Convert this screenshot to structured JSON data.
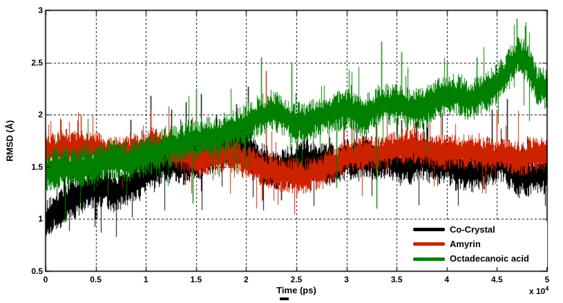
{
  "figure": {
    "background": "#ffffff",
    "axis_color": "#000000",
    "grid_style": "dashed"
  },
  "axes": {
    "xlabel": "Time (ps)",
    "ylabel": "RMSD (Å)",
    "x_multiplier_text": "x 10",
    "x_multiplier_exponent": "4",
    "x_tick_labels": [
      "0",
      "0.5",
      "1",
      "1.5",
      "2",
      "2.5",
      "3",
      "3.5",
      "4",
      "4.5",
      "5"
    ],
    "y_tick_labels": [
      "0.5",
      "1",
      "1.5",
      "2",
      "2.5",
      "3"
    ]
  },
  "legend": {
    "position": "lower right",
    "entries": [
      {
        "label": "Co-Crystal",
        "color": "#000000"
      },
      {
        "label": "Amyrin",
        "color": "#cc2200"
      },
      {
        "label": "Octadecanoic acid",
        "color": "#007f00"
      }
    ]
  },
  "chart_data": {
    "type": "line",
    "title": "",
    "xlabel": "Time (ps)",
    "ylabel": "RMSD (Å)",
    "xlim": [
      0,
      50000
    ],
    "ylim": [
      0.5,
      3.0
    ],
    "x_ticks_1e4": [
      0,
      0.5,
      1,
      1.5,
      2,
      2.5,
      3,
      3.5,
      4,
      4.5,
      5
    ],
    "y_ticks": [
      0.5,
      1,
      1.5,
      2,
      2.5,
      3
    ],
    "grid": true,
    "legend_position": "lower right",
    "series": [
      {
        "name": "Co-Crystal",
        "color": "#000000",
        "noise_amplitude": 0.14,
        "seed": 11,
        "trend": [
          [
            0,
            0.98
          ],
          [
            0.1,
            1.12
          ],
          [
            0.25,
            1.22
          ],
          [
            0.4,
            1.3
          ],
          [
            0.55,
            1.33
          ],
          [
            0.7,
            1.3
          ],
          [
            0.85,
            1.38
          ],
          [
            1.0,
            1.44
          ],
          [
            1.15,
            1.5
          ],
          [
            1.3,
            1.55
          ],
          [
            1.45,
            1.55
          ],
          [
            1.6,
            1.62
          ],
          [
            1.75,
            1.66
          ],
          [
            1.9,
            1.72
          ],
          [
            2.0,
            1.68
          ],
          [
            2.1,
            1.55
          ],
          [
            2.2,
            1.5
          ],
          [
            2.3,
            1.45
          ],
          [
            2.45,
            1.55
          ],
          [
            2.6,
            1.58
          ],
          [
            2.75,
            1.55
          ],
          [
            2.9,
            1.5
          ],
          [
            3.0,
            1.56
          ],
          [
            3.15,
            1.6
          ],
          [
            3.3,
            1.55
          ],
          [
            3.45,
            1.52
          ],
          [
            3.6,
            1.5
          ],
          [
            3.75,
            1.55
          ],
          [
            3.9,
            1.52
          ],
          [
            4.0,
            1.55
          ],
          [
            4.1,
            1.48
          ],
          [
            4.25,
            1.45
          ],
          [
            4.4,
            1.52
          ],
          [
            4.55,
            1.56
          ],
          [
            4.7,
            1.45
          ],
          [
            4.85,
            1.42
          ],
          [
            5.0,
            1.45
          ]
        ],
        "spikes": [
          [
            0.05,
            0.93
          ],
          [
            0.85,
            1.95
          ],
          [
            1.05,
            2.18
          ],
          [
            1.25,
            2.05
          ],
          [
            1.4,
            2.12
          ],
          [
            1.55,
            2.2
          ],
          [
            1.7,
            2.0
          ],
          [
            1.9,
            2.1
          ],
          [
            2.02,
            2.27
          ],
          [
            2.35,
            1.18
          ],
          [
            2.6,
            1.95
          ],
          [
            3.1,
            1.9
          ],
          [
            3.55,
            1.95
          ],
          [
            4.45,
            2.05
          ],
          [
            4.6,
            2.15
          ]
        ]
      },
      {
        "name": "Amyrin",
        "color": "#cc2200",
        "noise_amplitude": 0.12,
        "seed": 22,
        "trend": [
          [
            0,
            1.66
          ],
          [
            0.15,
            1.7
          ],
          [
            0.3,
            1.72
          ],
          [
            0.45,
            1.68
          ],
          [
            0.6,
            1.65
          ],
          [
            0.75,
            1.63
          ],
          [
            0.9,
            1.66
          ],
          [
            1.05,
            1.7
          ],
          [
            1.2,
            1.68
          ],
          [
            1.35,
            1.62
          ],
          [
            1.5,
            1.58
          ],
          [
            1.65,
            1.6
          ],
          [
            1.8,
            1.62
          ],
          [
            1.95,
            1.6
          ],
          [
            2.1,
            1.52
          ],
          [
            2.25,
            1.46
          ],
          [
            2.4,
            1.43
          ],
          [
            2.55,
            1.42
          ],
          [
            2.7,
            1.48
          ],
          [
            2.85,
            1.55
          ],
          [
            3.0,
            1.62
          ],
          [
            3.15,
            1.65
          ],
          [
            3.3,
            1.63
          ],
          [
            3.45,
            1.65
          ],
          [
            3.6,
            1.68
          ],
          [
            3.75,
            1.65
          ],
          [
            3.9,
            1.63
          ],
          [
            4.05,
            1.66
          ],
          [
            4.2,
            1.68
          ],
          [
            4.35,
            1.65
          ],
          [
            4.5,
            1.62
          ],
          [
            4.65,
            1.6
          ],
          [
            4.8,
            1.63
          ],
          [
            5.0,
            1.64
          ]
        ],
        "spikes": [
          [
            0.15,
            1.95
          ],
          [
            0.35,
            2.0
          ],
          [
            1.05,
            2.05
          ],
          [
            2.2,
            2.42
          ],
          [
            2.5,
            1.2
          ],
          [
            3.05,
            2.0
          ],
          [
            3.6,
            2.1
          ],
          [
            4.5,
            2.05
          ]
        ]
      },
      {
        "name": "Octadecanoic acid",
        "color": "#007f00",
        "noise_amplitude": 0.14,
        "seed": 33,
        "trend": [
          [
            0,
            1.45
          ],
          [
            0.15,
            1.48
          ],
          [
            0.3,
            1.5
          ],
          [
            0.45,
            1.52
          ],
          [
            0.6,
            1.5
          ],
          [
            0.75,
            1.52
          ],
          [
            0.9,
            1.55
          ],
          [
            1.05,
            1.6
          ],
          [
            1.2,
            1.68
          ],
          [
            1.35,
            1.72
          ],
          [
            1.5,
            1.78
          ],
          [
            1.65,
            1.8
          ],
          [
            1.8,
            1.84
          ],
          [
            1.95,
            1.88
          ],
          [
            2.1,
            2.0
          ],
          [
            2.25,
            2.05
          ],
          [
            2.4,
            1.98
          ],
          [
            2.55,
            1.95
          ],
          [
            2.7,
            1.98
          ],
          [
            2.85,
            2.02
          ],
          [
            3.0,
            2.08
          ],
          [
            3.15,
            2.0
          ],
          [
            3.3,
            2.1
          ],
          [
            3.45,
            2.12
          ],
          [
            3.6,
            2.08
          ],
          [
            3.75,
            2.05
          ],
          [
            3.9,
            2.15
          ],
          [
            4.05,
            2.18
          ],
          [
            4.2,
            2.12
          ],
          [
            4.35,
            2.2
          ],
          [
            4.5,
            2.3
          ],
          [
            4.6,
            2.45
          ],
          [
            4.7,
            2.62
          ],
          [
            4.8,
            2.55
          ],
          [
            4.9,
            2.3
          ],
          [
            5.0,
            2.25
          ]
        ],
        "spikes": [
          [
            1.47,
            1.15
          ],
          [
            1.5,
            2.25
          ],
          [
            2.15,
            2.55
          ],
          [
            2.45,
            2.5
          ],
          [
            2.9,
            1.3
          ],
          [
            3.3,
            1.1
          ],
          [
            3.35,
            2.7
          ],
          [
            3.55,
            2.6
          ],
          [
            4.0,
            2.5
          ],
          [
            4.3,
            2.55
          ],
          [
            4.7,
            2.92
          ],
          [
            4.78,
            2.85
          ]
        ]
      }
    ]
  }
}
